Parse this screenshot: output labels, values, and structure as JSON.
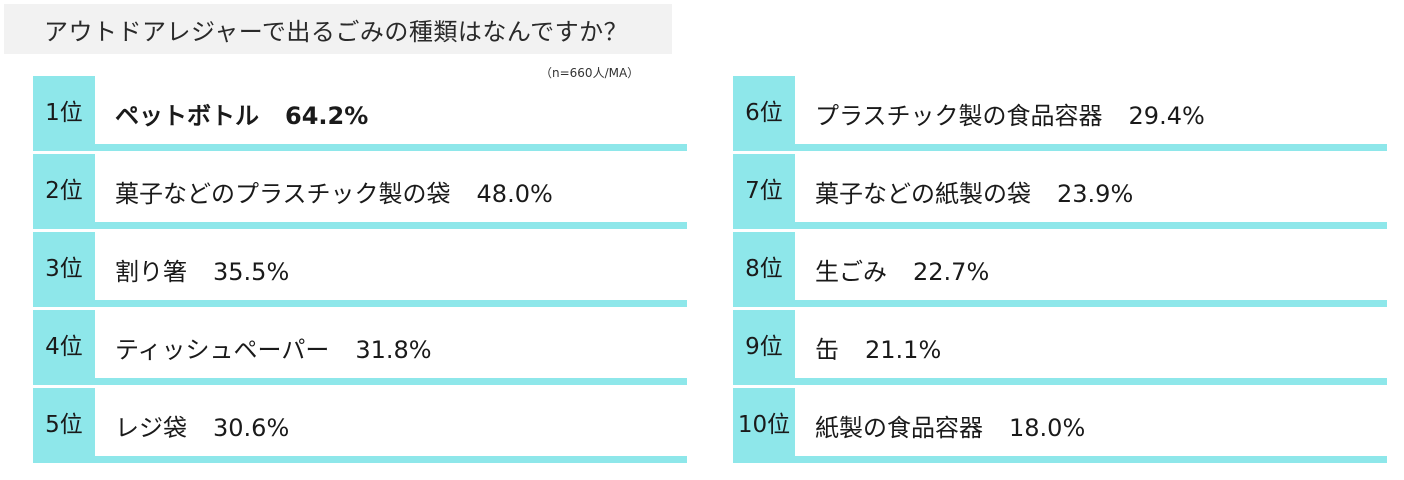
{
  "title": "アウトドアレジャーで出るごみの種類はなんですか？",
  "sample_note": "（n=660人/MA）",
  "colors": {
    "accent": "#8ee7ea",
    "title_bg": "#f2f2f2"
  },
  "chart_data": {
    "type": "table",
    "title": "アウトドアレジャーで出るごみの種類はなんですか？",
    "note": "（n=660人/MA）",
    "unit": "%",
    "rows": [
      {
        "rank": 1,
        "rank_label": "1位",
        "label": "ペットボトル",
        "value": 64.2,
        "value_label": "64.2%"
      },
      {
        "rank": 2,
        "rank_label": "2位",
        "label": "菓子などのプラスチック製の袋",
        "value": 48.0,
        "value_label": "48.0%"
      },
      {
        "rank": 3,
        "rank_label": "3位",
        "label": "割り箸",
        "value": 35.5,
        "value_label": "35.5%"
      },
      {
        "rank": 4,
        "rank_label": "4位",
        "label": "ティッシュペーパー",
        "value": 31.8,
        "value_label": "31.8%"
      },
      {
        "rank": 5,
        "rank_label": "5位",
        "label": "レジ袋",
        "value": 30.6,
        "value_label": "30.6%"
      },
      {
        "rank": 6,
        "rank_label": "6位",
        "label": "プラスチック製の食品容器",
        "value": 29.4,
        "value_label": "29.4%"
      },
      {
        "rank": 7,
        "rank_label": "7位",
        "label": "菓子などの紙製の袋",
        "value": 23.9,
        "value_label": "23.9%"
      },
      {
        "rank": 8,
        "rank_label": "8位",
        "label": "生ごみ",
        "value": 22.7,
        "value_label": "22.7%"
      },
      {
        "rank": 9,
        "rank_label": "9位",
        "label": "缶",
        "value": 21.1,
        "value_label": "21.1%"
      },
      {
        "rank": 10,
        "rank_label": "10位",
        "label": "紙製の食品容器",
        "value": 18.0,
        "value_label": "18.0%"
      }
    ]
  }
}
